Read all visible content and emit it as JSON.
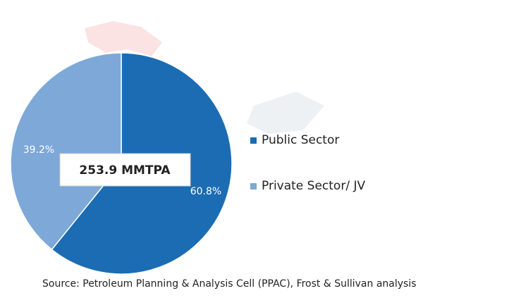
{
  "chart_data": {
    "type": "pie",
    "categories": [
      "Public Sector",
      "Private Sector/ JV"
    ],
    "values": [
      60.8,
      39.2
    ],
    "value_labels": [
      "60.8%",
      "39.2%"
    ],
    "colors": [
      "#1b6cb3",
      "#7da8d8"
    ],
    "annotation": "253.9 MMTPA",
    "source": "Source: Petroleum Planning & Analysis Cell (PPAC), Frost & Sullivan analysis"
  }
}
